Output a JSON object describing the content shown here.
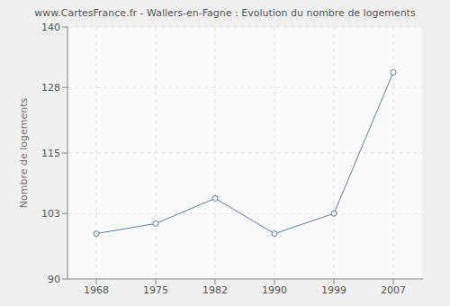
{
  "chart_data": {
    "type": "line",
    "title": "www.CartesFrance.fr - Wallers-en-Fagne : Evolution du nombre de logements",
    "y_label": "Nombre de logements",
    "categories": [
      "1968",
      "1975",
      "1982",
      "1990",
      "1999",
      "2007"
    ],
    "values": [
      99,
      101,
      106,
      99,
      103,
      131
    ],
    "color": "#5a7fa8",
    "marker": "circle",
    "ylim": [
      90,
      140
    ],
    "yticks": [
      90,
      103,
      115,
      128,
      140
    ],
    "grid": true
  }
}
